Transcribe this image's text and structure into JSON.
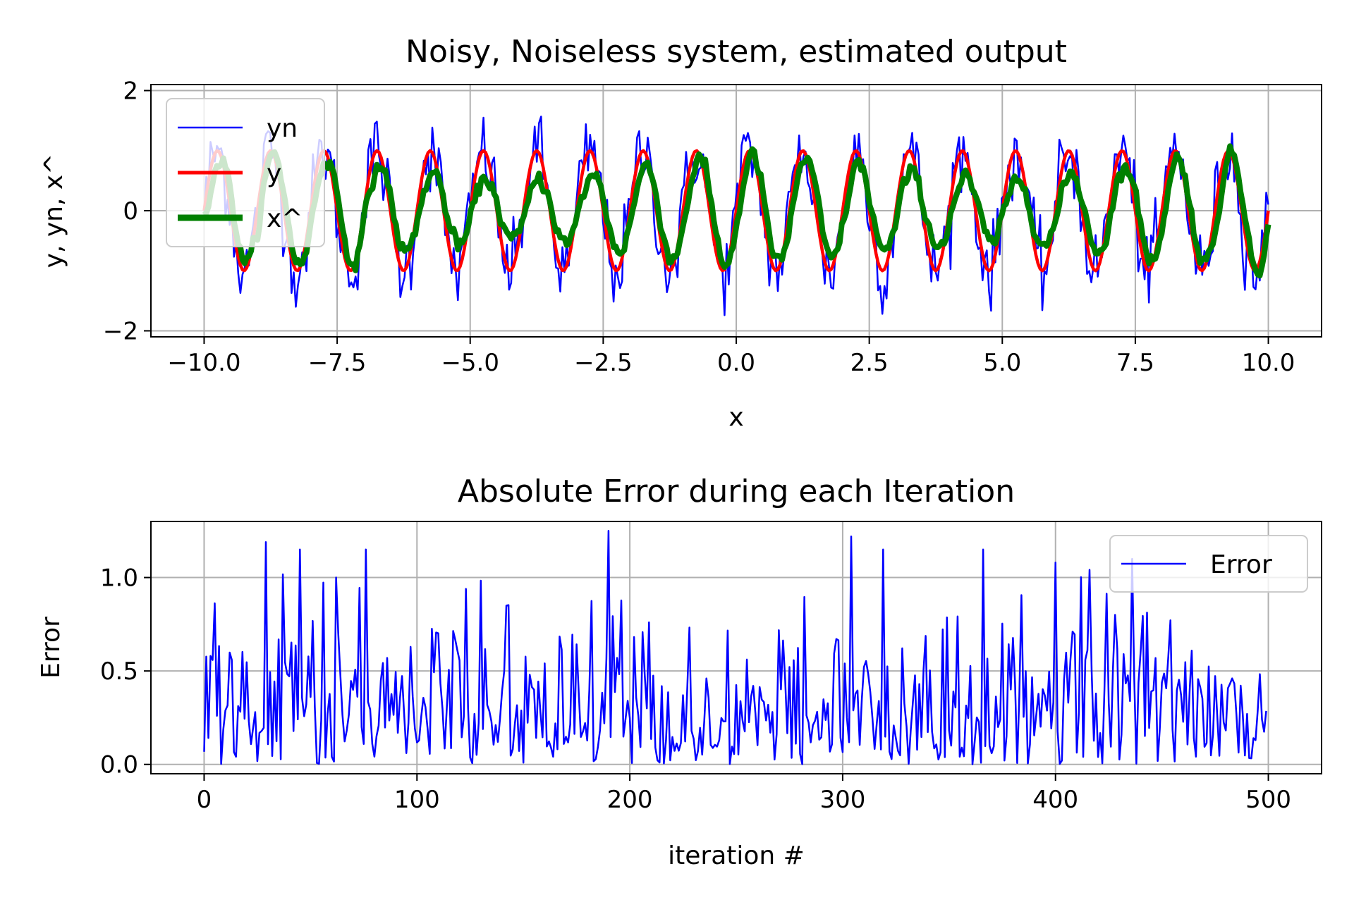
{
  "chart_data": [
    {
      "type": "line",
      "title": "Noisy, Noiseless system, estimated output",
      "xlabel": "x",
      "ylabel": "y, yn, x^",
      "xlim": [
        -11,
        11
      ],
      "ylim": [
        -2.1,
        2.1
      ],
      "xticks": [
        -10.0,
        -7.5,
        -5.0,
        -2.5,
        0.0,
        2.5,
        5.0,
        7.5,
        10.0
      ],
      "xtick_labels": [
        "−10.0",
        "−7.5",
        "−5.0",
        "−2.5",
        "0.0",
        "2.5",
        "5.0",
        "7.5",
        "10.0"
      ],
      "yticks": [
        -2,
        0,
        2
      ],
      "ytick_labels": [
        "−2",
        "0",
        "2"
      ],
      "grid": true,
      "legend_position": "top-left",
      "x_domain": [
        -10,
        10
      ],
      "n_points": 500,
      "series": [
        {
          "name": "yn",
          "color": "#0000ff",
          "approx_description": "sin(2*pi*x) plus noise, sd about 0.35"
        },
        {
          "name": "y",
          "color": "#ff0000",
          "approx_description": "sin(2*pi*x), amplitude 1"
        },
        {
          "name": "x^",
          "color": "#008000",
          "approx_description": "adaptive-filter estimate tracking y, amplitude about 0.8"
        }
      ]
    },
    {
      "type": "line",
      "title": "Absolute Error during each Iteration",
      "xlabel": "iteration #",
      "ylabel": "Error",
      "xlim": [
        -25,
        525
      ],
      "ylim": [
        -0.05,
        1.3
      ],
      "xticks": [
        0,
        100,
        200,
        300,
        400,
        500
      ],
      "xtick_labels": [
        "0",
        "100",
        "200",
        "300",
        "400",
        "500"
      ],
      "yticks": [
        0.0,
        0.5,
        1.0
      ],
      "ytick_labels": [
        "0.0",
        "0.5",
        "1.0"
      ],
      "grid": true,
      "legend_position": "top-right",
      "series": [
        {
          "name": "Error",
          "color": "#0000ff",
          "approx_description": "absolute error per iteration for 500 iterations, values between 0 and 1.25"
        }
      ],
      "notable_peaks": [
        {
          "x": 29,
          "y": 1.19
        },
        {
          "x": 190,
          "y": 1.25
        },
        {
          "x": 304,
          "y": 1.22
        },
        {
          "x": 400,
          "y": 1.08
        }
      ]
    }
  ]
}
